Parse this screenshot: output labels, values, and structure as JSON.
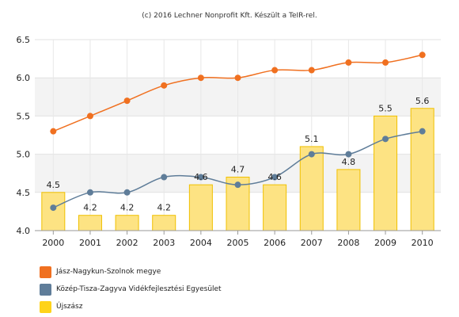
{
  "credit": "(c) 2016 Lechner Nonprofit Kft. Készült a TeIR-rel.",
  "chart_data": {
    "type": "bar",
    "x": [
      "2000",
      "2001",
      "2002",
      "2003",
      "2004",
      "2005",
      "2006",
      "2007",
      "2008",
      "2009",
      "2010"
    ],
    "ylim": [
      4.0,
      6.5
    ],
    "yticks": [
      "4.0",
      "4.5",
      "5.0",
      "5.5",
      "6.0",
      "6.5"
    ],
    "grid": true,
    "legend_placement": "bottom-left",
    "series": [
      {
        "name": "Jász-Nagykun-Szolnok megye",
        "type": "line",
        "color": "#f07020",
        "values": [
          5.3,
          5.5,
          5.7,
          5.9,
          6.0,
          6.0,
          6.1,
          6.1,
          6.2,
          6.2,
          6.3
        ]
      },
      {
        "name": "Közép-Tisza-Zagyva Vidékfejlesztési Egyesület",
        "type": "line",
        "color": "#5f7d99",
        "values": [
          4.3,
          4.5,
          4.5,
          4.7,
          4.7,
          4.6,
          4.7,
          5.0,
          5.0,
          5.2,
          5.3
        ]
      },
      {
        "name": "Újszász",
        "type": "bar",
        "color": "#fde383",
        "values": [
          4.5,
          4.2,
          4.2,
          4.2,
          4.6,
          4.7,
          4.6,
          5.1,
          4.8,
          5.5,
          5.6
        ],
        "labels": [
          "4.5",
          "4.2",
          "4.2",
          "4.2",
          "4.6",
          "4.7",
          "4.6",
          "5.1",
          "4.8",
          "5.5",
          "5.6"
        ]
      }
    ]
  }
}
